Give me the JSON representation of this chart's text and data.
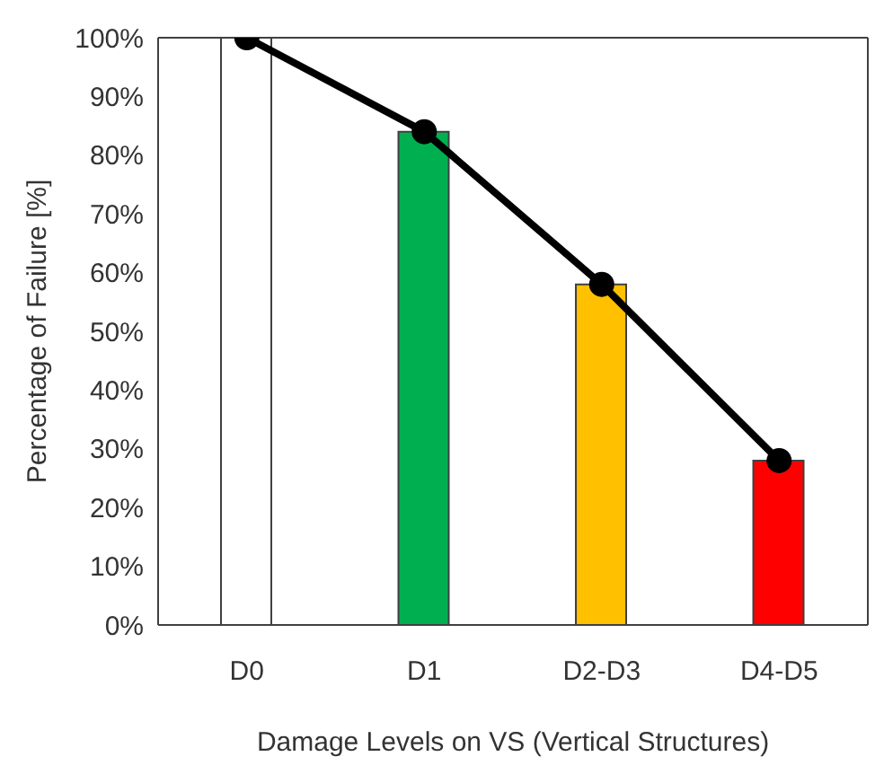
{
  "chart_data": {
    "type": "bar",
    "xlabel": "Damage Levels on VS (Vertical Structures)",
    "ylabel": "Percentage of Failure [%]",
    "categories": [
      "D0",
      "D1",
      "D2-D3",
      "D4-D5"
    ],
    "series": [
      {
        "colors": [
          "#ffffff",
          "#00b050",
          "#ffc000",
          "#ff0000"
        ],
        "values": [
          100,
          84,
          58,
          28
        ]
      },
      {
        "type": "line",
        "color": "#000000",
        "values": [
          100,
          84,
          58,
          28
        ]
      }
    ],
    "ylim": [
      0,
      100
    ],
    "yticks": [
      {
        "value": 0,
        "label": "0%"
      },
      {
        "value": 10,
        "label": "10%"
      },
      {
        "value": 20,
        "label": "20%"
      },
      {
        "value": 30,
        "label": "30%"
      },
      {
        "value": 40,
        "label": "40%"
      },
      {
        "value": 50,
        "label": "50%"
      },
      {
        "value": 60,
        "label": "60%"
      },
      {
        "value": 70,
        "label": "70%"
      },
      {
        "value": 80,
        "label": "80%"
      },
      {
        "value": 90,
        "label": "90%"
      },
      {
        "value": 100,
        "label": "100%"
      }
    ],
    "grid": false,
    "legend": false,
    "marker": "circle",
    "line_style": "solid"
  }
}
